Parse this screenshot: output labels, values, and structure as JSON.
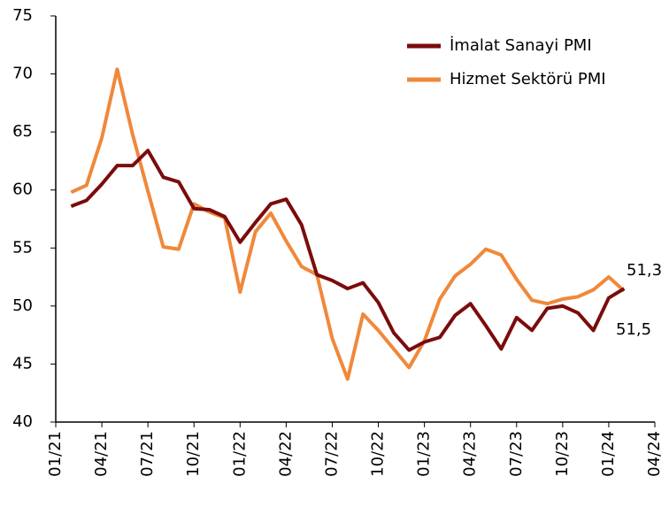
{
  "chart_data": {
    "type": "line",
    "categories": [
      "01/21",
      null,
      null,
      "04/21",
      null,
      null,
      "07/21",
      null,
      null,
      "10/21",
      null,
      null,
      "01/22",
      null,
      null,
      "04/22",
      null,
      null,
      "07/22",
      null,
      null,
      "10/22",
      null,
      null,
      "01/23",
      null,
      null,
      "04/23",
      null,
      null,
      "07/23",
      null,
      null,
      "10/23",
      null,
      null,
      "01/24",
      null,
      null,
      "04/24"
    ],
    "series": [
      {
        "name": "İmalat Sanayi PMI",
        "color": "#7b0c0c",
        "values": [
          null,
          58.6,
          59.1,
          60.5,
          62.1,
          62.1,
          63.4,
          61.1,
          60.7,
          58.4,
          58.3,
          57.7,
          55.5,
          57.2,
          58.8,
          59.2,
          57.0,
          52.7,
          52.2,
          51.5,
          52.0,
          50.3,
          47.7,
          46.2,
          46.9,
          47.3,
          49.2,
          50.2,
          48.3,
          46.3,
          49.0,
          47.9,
          49.8,
          50.0,
          49.4,
          47.9,
          50.7,
          51.5,
          null,
          null
        ]
      },
      {
        "name": "Hizmet Sektörü PMI",
        "color": "#f0883a",
        "values": [
          null,
          59.8,
          60.4,
          64.5,
          70.4,
          64.8,
          59.9,
          55.1,
          54.9,
          58.8,
          58.1,
          57.6,
          51.2,
          56.4,
          58.0,
          55.6,
          53.4,
          52.7,
          47.2,
          43.7,
          49.3,
          47.9,
          46.3,
          44.7,
          47.0,
          50.6,
          52.6,
          53.6,
          54.9,
          54.4,
          52.3,
          50.5,
          50.2,
          50.6,
          50.8,
          51.4,
          52.5,
          51.3,
          null,
          null
        ]
      }
    ],
    "annotations": [
      {
        "text": "51,3"
      },
      {
        "text": "51,5"
      }
    ],
    "ylim": [
      40,
      75
    ],
    "yticks": [
      40,
      45,
      50,
      55,
      60,
      65,
      70,
      75
    ],
    "legend": "upper right"
  }
}
